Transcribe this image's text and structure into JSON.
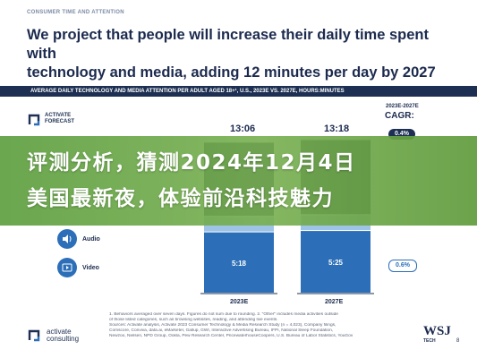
{
  "header": {
    "tag": "CONSUMER TIME AND ATTENTION",
    "headline_line1": "We project that people will increase their daily time spent with",
    "headline_line2": "technology and media, adding 12 minutes per day by 2027"
  },
  "band_title": "AVERAGE DAILY TECHNOLOGY AND MEDIA ATTENTION PER ADULT AGED 18+¹, U.S., 2023E VS. 2027E, HOURS:MINUTES",
  "logo": {
    "line1": "ACTIVATE",
    "line2": "FORECAST"
  },
  "cagr": {
    "years": "2023E-2027E",
    "title": "CAGR:"
  },
  "overlay": {
    "line1": "评测分析，猜测2024年12月4日",
    "line2": "美国最新夜，体验前沿科技魅力"
  },
  "chart_data": {
    "type": "bar",
    "stacked": true,
    "categories": [
      "2023E",
      "2027E"
    ],
    "totals": [
      "13:06",
      "13:18"
    ],
    "series": [
      {
        "name": "Video",
        "labels": [
          "5:18",
          "5:25"
        ],
        "values": [
          5.3,
          5.42
        ],
        "color": "#2c6fb8",
        "cagr": "0.6%"
      },
      {
        "name": "Audio",
        "labels": [
          "",
          ""
        ],
        "values": [
          1.35,
          1.37
        ],
        "color": "#9ec3e6",
        "cagr": ""
      },
      {
        "name": "",
        "labels": [
          "",
          ""
        ],
        "values": [
          6.42,
          6.51
        ],
        "color": "#1d2f52",
        "cagr": "0.4%"
      }
    ],
    "total_cagr": "0.4%"
  },
  "categories_legend": [
    {
      "label": "Audio",
      "icon": "speaker-icon"
    },
    {
      "label": "Video",
      "icon": "play-icon"
    }
  ],
  "notes": [
    "1. Behaviors averaged over seven days. Figures do not sum due to rounding.  2. \"Other\" includes media activities outside",
    "of those listed categories, such as browsing websites, reading, and attending live events.",
    "Sources: Activate analysis, Activate 2023 Consumer Technology & Media Research Study (n = 4,023), Company filings,",
    "Comscore, Conviva, data.ai, eMarketer, Gallup, GWI, Interactive Advertising Bureau, IFPI, National Sleep Foundation,",
    "Newzoo, Nielsen, NPD Group, Ookla, Pew Research Center, PricewaterhouseCoopers, U.S. Bureau of Labor Statistics, YouGov"
  ],
  "footer": {
    "logo_line1": "activate",
    "logo_line2": "consulting",
    "wsj": "WSJ",
    "wsj_sub": "TECH",
    "page": "8"
  },
  "colors": {
    "navy": "#1d2f52",
    "blue": "#2c6fb8",
    "light_blue": "#9ec3e6",
    "overlay_green": "#6fa84c"
  }
}
